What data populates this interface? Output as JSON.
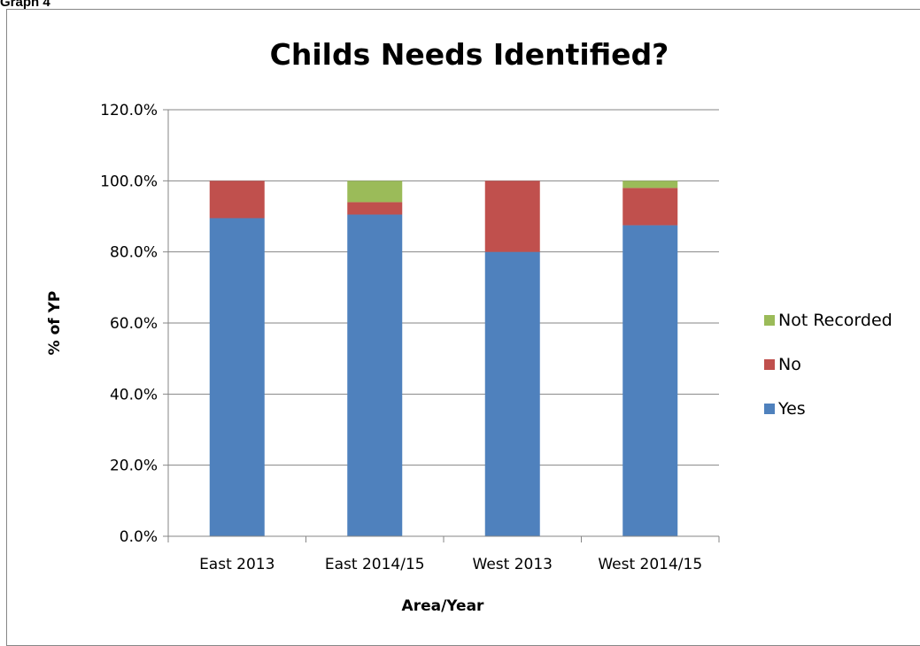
{
  "page_label": "Graph 4",
  "chart_data": {
    "type": "bar",
    "stacked": true,
    "title": "Childs Needs Identified?",
    "xlabel": "Area/Year",
    "ylabel": "% of YP",
    "categories": [
      "East 2013",
      "East 2014/15",
      "West 2013",
      "West 2014/15"
    ],
    "series": [
      {
        "name": "Yes",
        "color": "#4F81BD",
        "values": [
          89.5,
          90.5,
          80.0,
          87.5
        ]
      },
      {
        "name": "No",
        "color": "#C0504D",
        "values": [
          10.5,
          3.5,
          20.0,
          10.5
        ]
      },
      {
        "name": "Not Recorded",
        "color": "#9BBB59",
        "values": [
          0.0,
          6.0,
          0.0,
          2.0
        ]
      }
    ],
    "ylim": [
      0,
      120
    ],
    "yticks": [
      0,
      20,
      40,
      60,
      80,
      100,
      120
    ],
    "ytick_format": "percent_1dp",
    "grid": true,
    "legend_position": "right",
    "legend_order": [
      "Not Recorded",
      "No",
      "Yes"
    ]
  }
}
